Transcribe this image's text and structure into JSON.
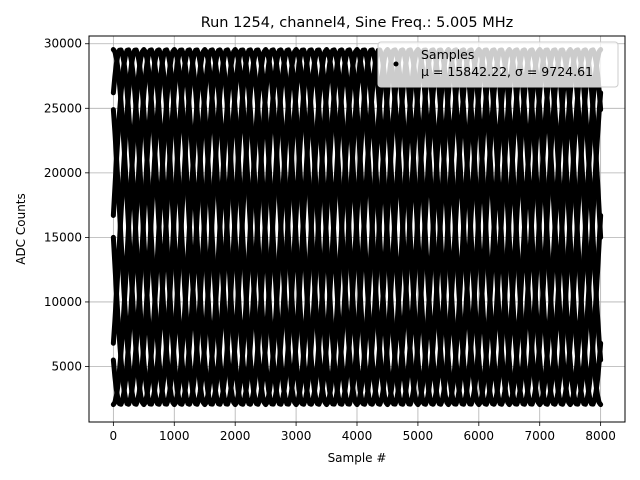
{
  "chart_data": {
    "type": "scatter",
    "title": "Run 1254, channel4, Sine Freq.: 5.005 MHz",
    "xlabel": "Sample #",
    "ylabel": "ADC Counts",
    "xlim": [
      -400,
      8400
    ],
    "ylim": [
      700,
      30600
    ],
    "xticks": [
      0,
      1000,
      2000,
      3000,
      4000,
      5000,
      6000,
      7000,
      8000
    ],
    "xtick_labels": [
      "0",
      "1000",
      "2000",
      "3000",
      "4000",
      "5000",
      "6000",
      "7000",
      "8000"
    ],
    "yticks": [
      5000,
      10000,
      15000,
      20000,
      25000,
      30000
    ],
    "ytick_labels": [
      "5000",
      "10000",
      "15000",
      "20000",
      "25000",
      "30000"
    ],
    "grid": true,
    "legend": {
      "placement": "top-right",
      "entries": [
        "Samples",
        "μ = 15842.22, σ = 9724.61"
      ]
    },
    "series": [
      {
        "name": "Samples",
        "color": "#000000",
        "model": {
          "mean": 15800,
          "amplitude": 13750,
          "period": 1000,
          "sample_range": [
            0,
            8000
          ],
          "phases_at_zero": [
            {
              "value_at_zero": 2050,
              "direction": "rising"
            },
            {
              "value_at_zero": 5500,
              "direction": "falling"
            },
            {
              "value_at_zero": 6800,
              "direction": "rising"
            },
            {
              "value_at_zero": 15000,
              "direction": "falling"
            },
            {
              "value_at_zero": 16700,
              "direction": "rising"
            },
            {
              "value_at_zero": 24900,
              "direction": "falling"
            },
            {
              "value_at_zero": 26200,
              "direction": "rising"
            },
            {
              "value_at_zero": 29550,
              "direction": "falling"
            }
          ]
        }
      }
    ]
  }
}
